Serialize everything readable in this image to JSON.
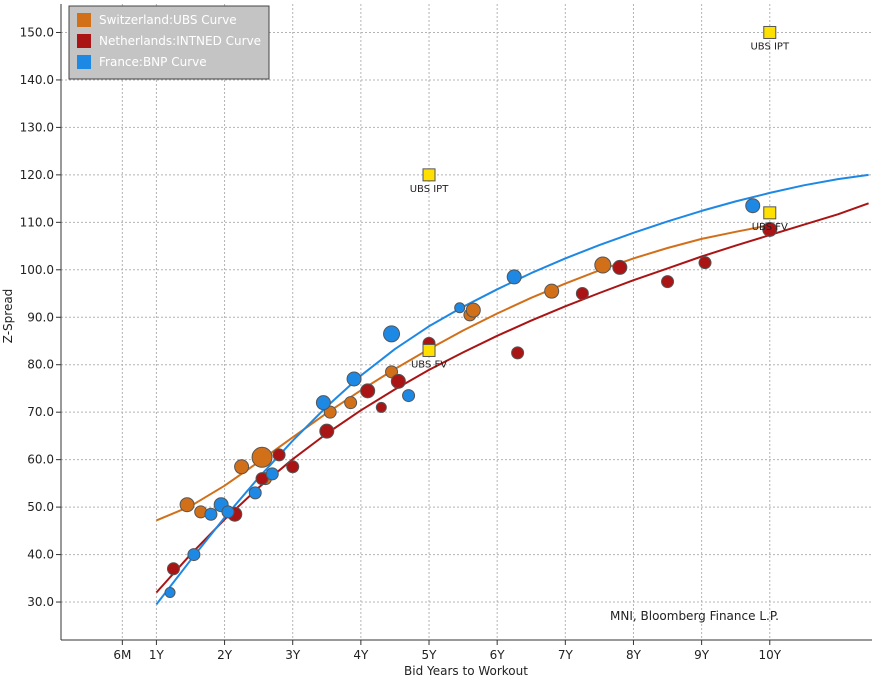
{
  "chart_data": {
    "type": "scatter",
    "xlabel": "Bid Years to Workout",
    "ylabel": "Z-Spread",
    "xlim": [
      -0.4,
      11.5
    ],
    "ylim": [
      22,
      156
    ],
    "x_ticks": [
      {
        "value": 0.5,
        "label": "6M"
      },
      {
        "value": 1,
        "label": "1Y"
      },
      {
        "value": 2,
        "label": "2Y"
      },
      {
        "value": 3,
        "label": "3Y"
      },
      {
        "value": 4,
        "label": "4Y"
      },
      {
        "value": 5,
        "label": "5Y"
      },
      {
        "value": 6,
        "label": "6Y"
      },
      {
        "value": 7,
        "label": "7Y"
      },
      {
        "value": 8,
        "label": "8Y"
      },
      {
        "value": 9,
        "label": "9Y"
      },
      {
        "value": 10,
        "label": "10Y"
      }
    ],
    "y_ticks": [
      {
        "value": 30,
        "label": "30.0"
      },
      {
        "value": 40,
        "label": "40.0"
      },
      {
        "value": 50,
        "label": "50.0"
      },
      {
        "value": 60,
        "label": "60.0"
      },
      {
        "value": 70,
        "label": "70.0"
      },
      {
        "value": 80,
        "label": "80.0"
      },
      {
        "value": 90,
        "label": "90.0"
      },
      {
        "value": 100,
        "label": "100.0"
      },
      {
        "value": 110,
        "label": "110.0"
      },
      {
        "value": 120,
        "label": "120.0"
      },
      {
        "value": 130,
        "label": "130.0"
      },
      {
        "value": 140,
        "label": "140.0"
      },
      {
        "value": 150,
        "label": "150.0"
      }
    ],
    "grid": true,
    "legend_position": "top-left",
    "credit": "MNI, Bloomberg Finance L.P.",
    "series": [
      {
        "name": "Switzerland:UBS Curve",
        "color": "#d2701a",
        "points": [
          {
            "x": 1.45,
            "y": 50.5,
            "s": 7
          },
          {
            "x": 1.65,
            "y": 49.0,
            "s": 6
          },
          {
            "x": 2.25,
            "y": 58.5,
            "s": 7
          },
          {
            "x": 2.55,
            "y": 60.5,
            "s": 10
          },
          {
            "x": 2.6,
            "y": 56.0,
            "s": 6
          },
          {
            "x": 3.55,
            "y": 70.0,
            "s": 6
          },
          {
            "x": 3.85,
            "y": 72.0,
            "s": 6
          },
          {
            "x": 4.45,
            "y": 78.5,
            "s": 6
          },
          {
            "x": 5.6,
            "y": 90.5,
            "s": 6
          },
          {
            "x": 5.65,
            "y": 91.5,
            "s": 7
          },
          {
            "x": 6.8,
            "y": 95.5,
            "s": 7
          },
          {
            "x": 7.55,
            "y": 101.0,
            "s": 8
          }
        ],
        "curve": [
          {
            "x": 1.0,
            "y": 47.2
          },
          {
            "x": 1.5,
            "y": 50.2
          },
          {
            "x": 2.0,
            "y": 54.5
          },
          {
            "x": 2.5,
            "y": 59.5
          },
          {
            "x": 3.0,
            "y": 64.7
          },
          {
            "x": 3.5,
            "y": 69.8
          },
          {
            "x": 4.0,
            "y": 74.6
          },
          {
            "x": 4.5,
            "y": 79.1
          },
          {
            "x": 5.0,
            "y": 83.3
          },
          {
            "x": 5.5,
            "y": 87.2
          },
          {
            "x": 6.0,
            "y": 90.8
          },
          {
            "x": 6.5,
            "y": 94.1
          },
          {
            "x": 7.0,
            "y": 97.1
          },
          {
            "x": 7.5,
            "y": 99.9
          },
          {
            "x": 8.0,
            "y": 102.4
          },
          {
            "x": 8.5,
            "y": 104.6
          },
          {
            "x": 9.0,
            "y": 106.5
          },
          {
            "x": 9.5,
            "y": 108.0
          },
          {
            "x": 10.0,
            "y": 109.4
          }
        ]
      },
      {
        "name": "Netherlands:INTNED Curve",
        "color": "#aa1414",
        "points": [
          {
            "x": 1.25,
            "y": 37.0,
            "s": 6
          },
          {
            "x": 2.15,
            "y": 48.5,
            "s": 7
          },
          {
            "x": 2.55,
            "y": 56.0,
            "s": 6
          },
          {
            "x": 2.8,
            "y": 61.0,
            "s": 6
          },
          {
            "x": 3.0,
            "y": 58.5,
            "s": 6
          },
          {
            "x": 3.5,
            "y": 66.0,
            "s": 7
          },
          {
            "x": 4.1,
            "y": 74.5,
            "s": 7
          },
          {
            "x": 4.3,
            "y": 71.0,
            "s": 5
          },
          {
            "x": 4.55,
            "y": 76.5,
            "s": 7
          },
          {
            "x": 5.0,
            "y": 84.5,
            "s": 6
          },
          {
            "x": 6.3,
            "y": 82.5,
            "s": 6
          },
          {
            "x": 7.25,
            "y": 95.0,
            "s": 6
          },
          {
            "x": 7.8,
            "y": 100.5,
            "s": 7
          },
          {
            "x": 8.5,
            "y": 97.5,
            "s": 6
          },
          {
            "x": 9.05,
            "y": 101.5,
            "s": 6
          },
          {
            "x": 10.0,
            "y": 108.5,
            "s": 7
          }
        ],
        "curve": [
          {
            "x": 1.0,
            "y": 32.0
          },
          {
            "x": 1.5,
            "y": 40.0
          },
          {
            "x": 2.0,
            "y": 47.4
          },
          {
            "x": 2.5,
            "y": 54.1
          },
          {
            "x": 3.0,
            "y": 60.1
          },
          {
            "x": 3.5,
            "y": 65.5
          },
          {
            "x": 4.0,
            "y": 70.4
          },
          {
            "x": 4.5,
            "y": 74.8
          },
          {
            "x": 5.0,
            "y": 78.9
          },
          {
            "x": 5.5,
            "y": 82.6
          },
          {
            "x": 6.0,
            "y": 86.1
          },
          {
            "x": 6.5,
            "y": 89.3
          },
          {
            "x": 7.0,
            "y": 92.3
          },
          {
            "x": 7.5,
            "y": 95.1
          },
          {
            "x": 8.0,
            "y": 97.8
          },
          {
            "x": 8.5,
            "y": 100.3
          },
          {
            "x": 9.0,
            "y": 102.8
          },
          {
            "x": 9.5,
            "y": 105.1
          },
          {
            "x": 10.0,
            "y": 107.3
          },
          {
            "x": 10.5,
            "y": 109.5
          },
          {
            "x": 11.0,
            "y": 111.7
          },
          {
            "x": 11.45,
            "y": 114.0
          }
        ]
      },
      {
        "name": "France:BNP Curve",
        "color": "#1e88e5",
        "points": [
          {
            "x": 1.2,
            "y": 32.0,
            "s": 5
          },
          {
            "x": 1.55,
            "y": 40.0,
            "s": 6
          },
          {
            "x": 1.8,
            "y": 48.5,
            "s": 6
          },
          {
            "x": 1.95,
            "y": 50.5,
            "s": 7
          },
          {
            "x": 2.05,
            "y": 49.0,
            "s": 6
          },
          {
            "x": 2.45,
            "y": 53.0,
            "s": 6
          },
          {
            "x": 2.7,
            "y": 57.0,
            "s": 6
          },
          {
            "x": 3.45,
            "y": 72.0,
            "s": 7
          },
          {
            "x": 3.9,
            "y": 77.0,
            "s": 7
          },
          {
            "x": 4.45,
            "y": 86.5,
            "s": 8
          },
          {
            "x": 4.7,
            "y": 73.5,
            "s": 6
          },
          {
            "x": 5.45,
            "y": 92.0,
            "s": 5
          },
          {
            "x": 6.25,
            "y": 98.5,
            "s": 7
          },
          {
            "x": 9.75,
            "y": 113.5,
            "s": 7
          }
        ],
        "curve": [
          {
            "x": 1.0,
            "y": 29.5
          },
          {
            "x": 1.5,
            "y": 38.8
          },
          {
            "x": 2.0,
            "y": 47.8
          },
          {
            "x": 2.5,
            "y": 56.2
          },
          {
            "x": 3.0,
            "y": 64.0
          },
          {
            "x": 3.5,
            "y": 71.2
          },
          {
            "x": 4.0,
            "y": 77.7
          },
          {
            "x": 4.5,
            "y": 83.3
          },
          {
            "x": 5.0,
            "y": 88.1
          },
          {
            "x": 5.5,
            "y": 92.2
          },
          {
            "x": 6.0,
            "y": 95.9
          },
          {
            "x": 6.5,
            "y": 99.3
          },
          {
            "x": 7.0,
            "y": 102.4
          },
          {
            "x": 7.5,
            "y": 105.2
          },
          {
            "x": 8.0,
            "y": 107.8
          },
          {
            "x": 8.5,
            "y": 110.2
          },
          {
            "x": 9.0,
            "y": 112.4
          },
          {
            "x": 9.5,
            "y": 114.4
          },
          {
            "x": 10.0,
            "y": 116.2
          },
          {
            "x": 10.5,
            "y": 117.8
          },
          {
            "x": 11.0,
            "y": 119.1
          },
          {
            "x": 11.45,
            "y": 120.0
          }
        ]
      }
    ],
    "annotations": [
      {
        "x": 5.0,
        "y": 120.0,
        "label": "UBS IPT",
        "color": "#ffe000"
      },
      {
        "x": 5.0,
        "y": 83.0,
        "label": "UBS FV",
        "color": "#ffe000"
      },
      {
        "x": 10.0,
        "y": 150.0,
        "label": "UBS IPT",
        "color": "#ffe000"
      },
      {
        "x": 10.0,
        "y": 112.0,
        "label": "UBS FV",
        "color": "#ffe000"
      }
    ]
  }
}
